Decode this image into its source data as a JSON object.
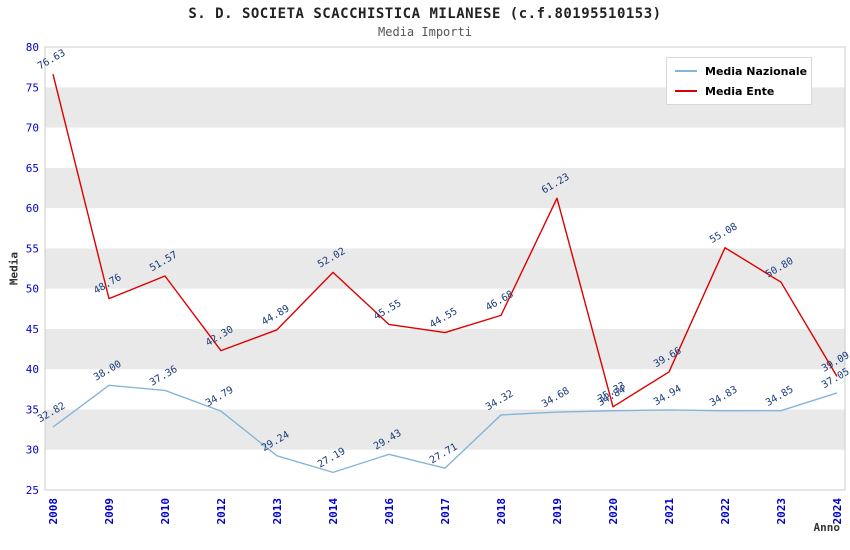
{
  "title": "S. D. SOCIETA SCACCHISTICA MILANESE (c.f.80195510153)",
  "subtitle": "Media Importi",
  "chart_data": {
    "type": "line",
    "title": "S. D. SOCIETA SCACCHISTICA MILANESE (c.f.80195510153)",
    "subtitle": "Media Importi",
    "xlabel": "Anno",
    "ylabel": "Media",
    "categories": [
      "2008",
      "2009",
      "2010",
      "2012",
      "2013",
      "2014",
      "2016",
      "2017",
      "2018",
      "2019",
      "2020",
      "2021",
      "2022",
      "2023",
      "2024"
    ],
    "series": [
      {
        "name": "Media Nazionale",
        "color": "#85b5d8",
        "values": [
          32.82,
          38.0,
          37.36,
          34.79,
          29.24,
          27.19,
          29.43,
          27.71,
          34.32,
          34.68,
          34.84,
          34.94,
          34.83,
          34.85,
          37.05
        ]
      },
      {
        "name": "Media Ente",
        "color": "#dd0000",
        "values": [
          76.63,
          48.76,
          51.57,
          42.3,
          44.89,
          52.02,
          45.55,
          44.55,
          46.68,
          61.23,
          35.33,
          39.66,
          55.08,
          50.8,
          39.09
        ]
      }
    ],
    "ylim": [
      25,
      80
    ],
    "ytick_step": 5,
    "yticks": [
      25,
      30,
      35,
      40,
      45,
      50,
      55,
      60,
      65,
      70,
      75,
      80
    ],
    "legend_position": "top-right",
    "grid_bands": true,
    "band_color": "#e9e9e9",
    "tick_color": "#0000cc",
    "label_color": "#173a7a",
    "border_color": "#cccccc"
  }
}
